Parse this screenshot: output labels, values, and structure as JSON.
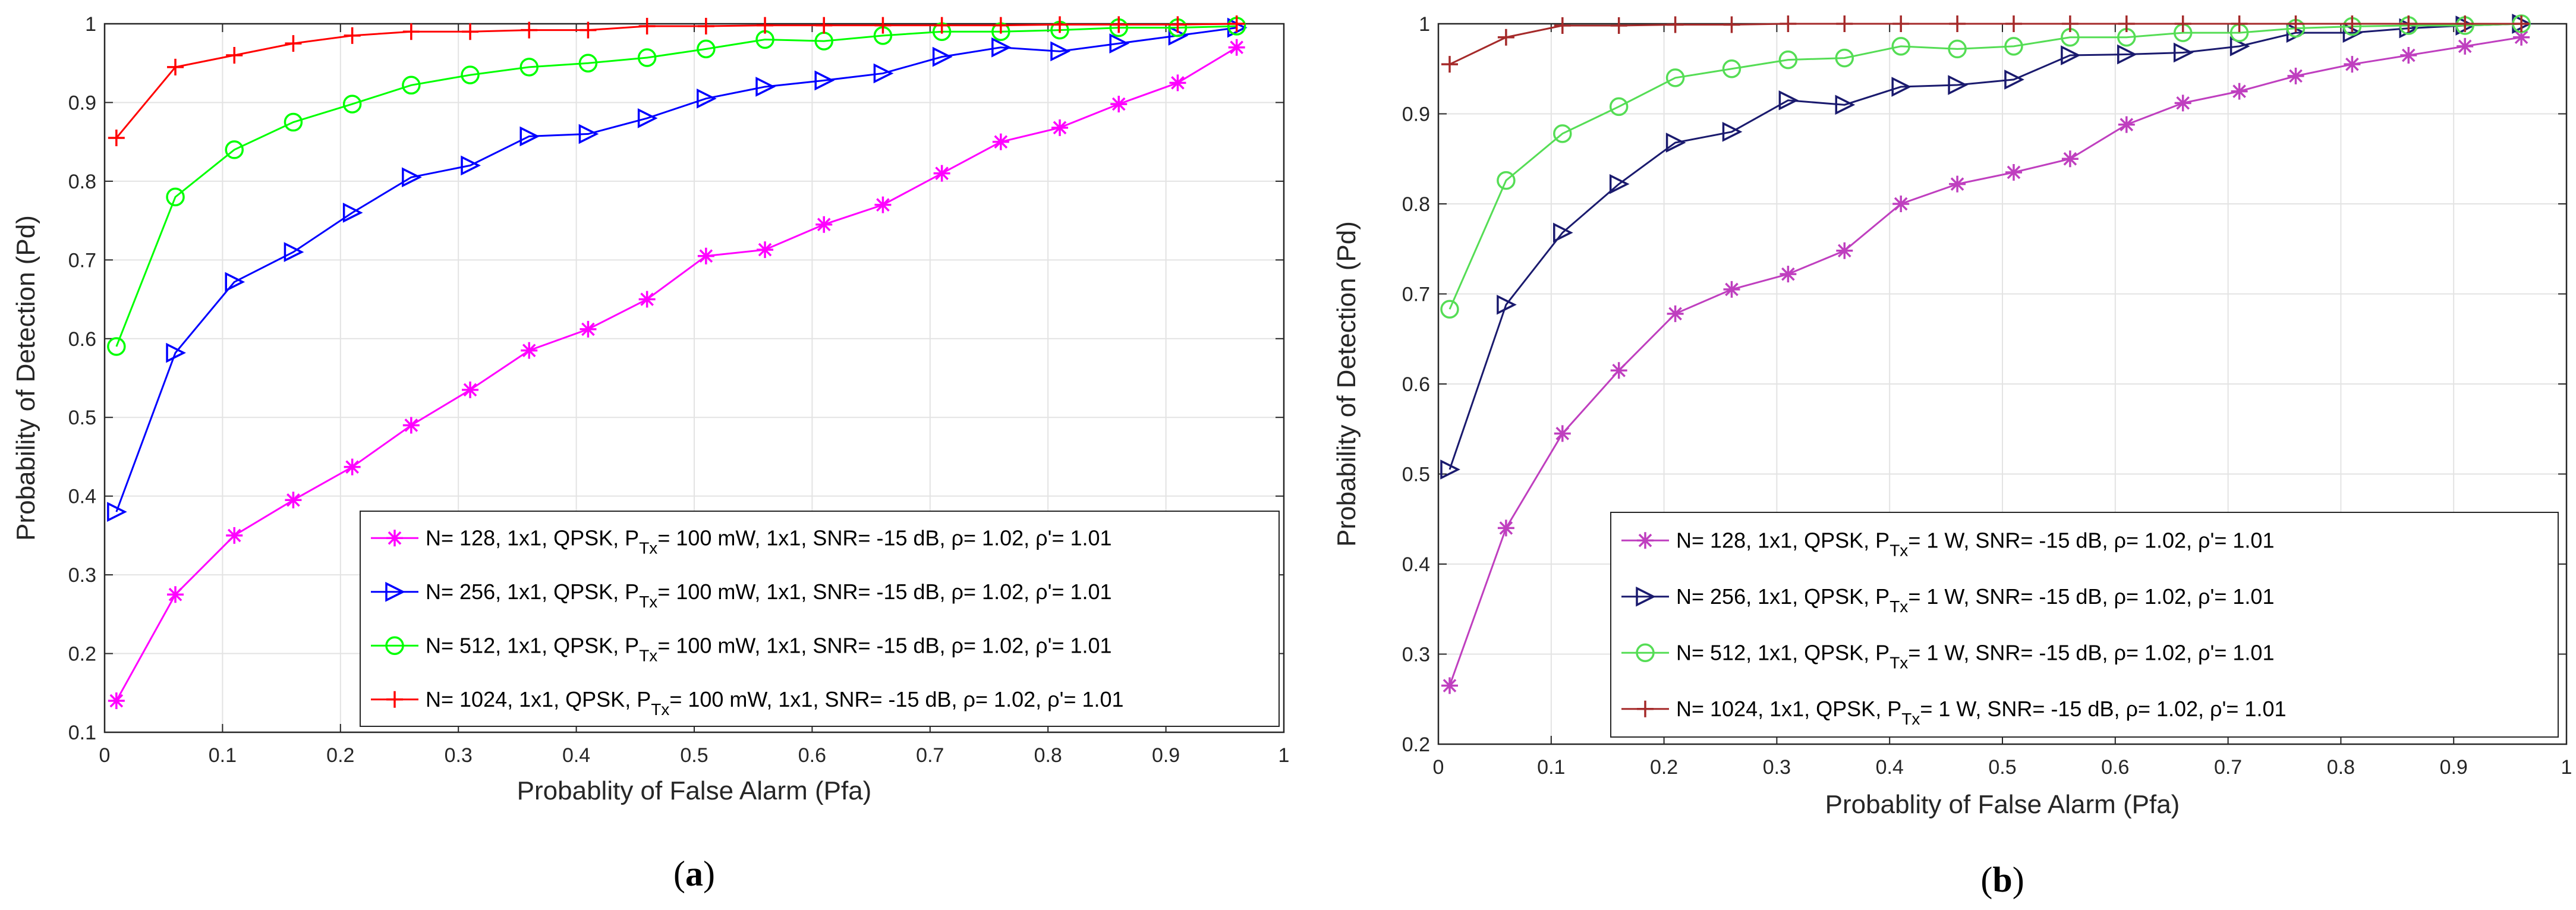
{
  "chart_data": [
    {
      "type": "line",
      "panel": "a",
      "caption": {
        "open": "(",
        "letter": "a",
        "close": ")"
      },
      "title": "",
      "xlabel": "Probablity of False Alarm (Pfa)",
      "ylabel": "Probability of Detection (Pd)",
      "xlim": [
        0,
        1
      ],
      "ylim": [
        0.1,
        1
      ],
      "xticks": [
        0,
        0.1,
        0.2,
        0.3,
        0.4,
        0.5,
        0.6,
        0.7,
        0.8,
        0.9,
        1
      ],
      "xtick_labels": [
        "0",
        "0.1",
        "0.2",
        "0.3",
        "0.4",
        "0.5",
        "0.6",
        "0.7",
        "0.8",
        "0.9",
        "1"
      ],
      "yticks": [
        0.1,
        0.2,
        0.3,
        0.4,
        0.5,
        0.6,
        0.7,
        0.8,
        0.9,
        1
      ],
      "ytick_labels": [
        "0.1",
        "0.2",
        "0.3",
        "0.4",
        "0.5",
        "0.6",
        "0.7",
        "0.8",
        "0.9",
        "1"
      ],
      "grid": true,
      "legend_position": "bottom-right",
      "x": [
        0.01,
        0.06,
        0.11,
        0.16,
        0.21,
        0.26,
        0.31,
        0.36,
        0.41,
        0.46,
        0.51,
        0.56,
        0.61,
        0.66,
        0.71,
        0.76,
        0.81,
        0.86,
        0.91,
        0.96
      ],
      "series": [
        {
          "name": "N= 128, 1x1, QPSK, P_Tx= 100 mW, 1x1, SNR= -15 dB, ρ= 1.02, ρ'= 1.01",
          "label_parts": {
            "before": "N= 128, 1x1, QPSK, P",
            "sub": "Tx",
            "after": "= 100 mW, 1x1, SNR= -15 dB, ρ= 1.02, ρ'= 1.01"
          },
          "color": "#ff00ff",
          "marker": "asterisk",
          "values": [
            0.14,
            0.275,
            0.35,
            0.395,
            0.437,
            0.49,
            0.535,
            0.585,
            0.612,
            0.65,
            0.705,
            0.713,
            0.745,
            0.77,
            0.81,
            0.85,
            0.868,
            0.898,
            0.925,
            0.97
          ]
        },
        {
          "name": "N= 256, 1x1, QPSK, P_Tx= 100 mW, 1x1, SNR= -15 dB, ρ= 1.02, ρ'= 1.01",
          "label_parts": {
            "before": "N= 256, 1x1, QPSK, P",
            "sub": "Tx",
            "after": "= 100 mW, 1x1, SNR= -15 dB, ρ= 1.02, ρ'= 1.01"
          },
          "color": "#0000ff",
          "marker": "triangle-right",
          "values": [
            0.38,
            0.582,
            0.672,
            0.71,
            0.76,
            0.805,
            0.82,
            0.857,
            0.86,
            0.88,
            0.905,
            0.92,
            0.928,
            0.937,
            0.958,
            0.97,
            0.965,
            0.975,
            0.985,
            0.995
          ]
        },
        {
          "name": "N= 512, 1x1, QPSK, P_Tx= 100 mW, 1x1, SNR= -15 dB, ρ= 1.02, ρ'= 1.01",
          "label_parts": {
            "before": "N= 512, 1x1, QPSK, P",
            "sub": "Tx",
            "after": "= 100 mW, 1x1, SNR= -15 dB, ρ= 1.02, ρ'= 1.01"
          },
          "color": "#00ff00",
          "marker": "circle",
          "values": [
            0.59,
            0.78,
            0.84,
            0.875,
            0.898,
            0.922,
            0.935,
            0.945,
            0.95,
            0.957,
            0.968,
            0.98,
            0.978,
            0.985,
            0.99,
            0.99,
            0.992,
            0.995,
            0.995,
            0.997
          ]
        },
        {
          "name": "N= 1024, 1x1, QPSK, P_Tx= 100 mW, 1x1, SNR= -15 dB, ρ= 1.02, ρ'= 1.01",
          "label_parts": {
            "before": "N= 1024, 1x1, QPSK, P",
            "sub": "Tx",
            "after": "= 100 mW, 1x1, SNR= -15 dB, ρ= 1.02, ρ'= 1.01"
          },
          "color": "#ff0000",
          "marker": "plus",
          "values": [
            0.855,
            0.945,
            0.96,
            0.975,
            0.985,
            0.99,
            0.99,
            0.992,
            0.992,
            0.997,
            0.997,
            0.998,
            0.998,
            0.998,
            0.998,
            0.998,
            0.999,
            0.999,
            0.999,
            1.0
          ]
        }
      ]
    },
    {
      "type": "line",
      "panel": "b",
      "caption": {
        "open": "(",
        "letter": "b",
        "close": ")"
      },
      "title": "",
      "xlabel": "Probablity of False Alarm (Pfa)",
      "ylabel": "Probability of Detection (Pd)",
      "xlim": [
        0,
        1
      ],
      "ylim": [
        0.2,
        1
      ],
      "xticks": [
        0,
        0.1,
        0.2,
        0.3,
        0.4,
        0.5,
        0.6,
        0.7,
        0.8,
        0.9,
        1
      ],
      "xtick_labels": [
        "0",
        "0.1",
        "0.2",
        "0.3",
        "0.4",
        "0.5",
        "0.6",
        "0.7",
        "0.8",
        "0.9",
        "1"
      ],
      "yticks": [
        0.2,
        0.3,
        0.4,
        0.5,
        0.6,
        0.7,
        0.8,
        0.9,
        1
      ],
      "ytick_labels": [
        "0.2",
        "0.3",
        "0.4",
        "0.5",
        "0.6",
        "0.7",
        "0.8",
        "0.9",
        "1"
      ],
      "grid": true,
      "legend_position": "bottom-right",
      "x": [
        0.01,
        0.06,
        0.11,
        0.16,
        0.21,
        0.26,
        0.31,
        0.36,
        0.41,
        0.46,
        0.51,
        0.56,
        0.61,
        0.66,
        0.71,
        0.76,
        0.81,
        0.86,
        0.91,
        0.96
      ],
      "series": [
        {
          "name": "N= 128, 1x1, QPSK, P_Tx= 1 W, SNR= -15 dB, ρ= 1.02, ρ'= 1.01",
          "label_parts": {
            "before": "N= 128, 1x1, QPSK, P",
            "sub": "Tx",
            "after": "= 1 W, SNR= -15 dB, ρ= 1.02, ρ'= 1.01"
          },
          "color": "#bf3fbf",
          "marker": "asterisk",
          "values": [
            0.265,
            0.44,
            0.545,
            0.615,
            0.678,
            0.705,
            0.722,
            0.748,
            0.8,
            0.822,
            0.835,
            0.85,
            0.888,
            0.912,
            0.925,
            0.942,
            0.955,
            0.965,
            0.975,
            0.985
          ]
        },
        {
          "name": "N= 256, 1x1, QPSK, P_Tx= 1 W, SNR= -15 dB, ρ= 1.02, ρ'= 1.01",
          "label_parts": {
            "before": "N= 256, 1x1, QPSK, P",
            "sub": "Tx",
            "after": "= 1 W, SNR= -15 dB, ρ= 1.02, ρ'= 1.01"
          },
          "color": "#1a1a6e",
          "marker": "triangle-right",
          "values": [
            0.505,
            0.688,
            0.768,
            0.822,
            0.868,
            0.88,
            0.915,
            0.91,
            0.93,
            0.932,
            0.938,
            0.965,
            0.966,
            0.968,
            0.975,
            0.99,
            0.99,
            0.995,
            0.998,
            1.0
          ]
        },
        {
          "name": "N= 512, 1x1, QPSK, P_Tx= 1 W, SNR= -15 dB, ρ= 1.02, ρ'= 1.01",
          "label_parts": {
            "before": "N= 512, 1x1, QPSK, P",
            "sub": "Tx",
            "after": "= 1 W, SNR= -15 dB, ρ= 1.02, ρ'= 1.01"
          },
          "color": "#55dd55",
          "marker": "circle",
          "values": [
            0.683,
            0.826,
            0.878,
            0.908,
            0.94,
            0.95,
            0.96,
            0.962,
            0.975,
            0.972,
            0.975,
            0.985,
            0.985,
            0.99,
            0.99,
            0.995,
            0.997,
            0.998,
            0.998,
            1.0
          ]
        },
        {
          "name": "N= 1024, 1x1, QPSK, P_Tx= 1 W, SNR= -15 dB, ρ= 1.02, ρ'= 1.01",
          "label_parts": {
            "before": "N= 1024, 1x1, QPSK, P",
            "sub": "Tx",
            "after": "= 1 W, SNR= -15 dB, ρ= 1.02, ρ'= 1.01"
          },
          "color": "#a52a2a",
          "marker": "plus",
          "values": [
            0.955,
            0.985,
            0.998,
            0.998,
            0.999,
            0.999,
            1.0,
            1.0,
            1.0,
            1.0,
            1.0,
            1.0,
            1.0,
            1.0,
            1.0,
            1.0,
            1.0,
            1.0,
            1.0,
            1.0
          ]
        }
      ]
    }
  ]
}
